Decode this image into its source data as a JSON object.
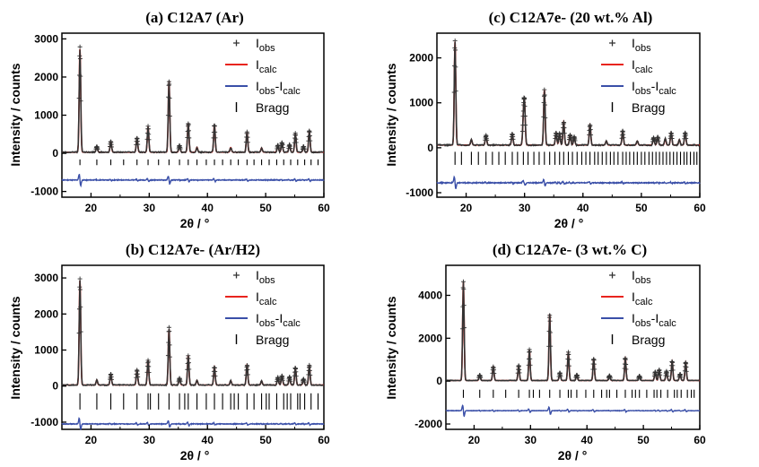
{
  "chart_data": [
    {
      "type": "line",
      "panel": "a",
      "title": "(a) C12A7 (Ar)",
      "xlabel": "2θ / °",
      "ylabel": "Intensity / counts",
      "xlim": [
        15,
        60
      ],
      "ylim": [
        -1150,
        3150
      ],
      "xticks": [
        20,
        30,
        40,
        50,
        60
      ],
      "yticks": [
        -1000,
        0,
        1000,
        2000,
        3000
      ],
      "baseline": 30,
      "diff_offset": -700,
      "bragg_row": [
        -160,
        -310
      ],
      "peaks": [
        [
          18.1,
          2700
        ],
        [
          21.0,
          150
        ],
        [
          23.4,
          280
        ],
        [
          27.9,
          380
        ],
        [
          29.8,
          660
        ],
        [
          33.4,
          1870
        ],
        [
          35.2,
          170
        ],
        [
          36.7,
          760
        ],
        [
          38.2,
          130
        ],
        [
          41.2,
          720
        ],
        [
          44.0,
          120
        ],
        [
          46.8,
          520
        ],
        [
          49.3,
          110
        ],
        [
          52.1,
          180
        ],
        [
          52.8,
          250
        ],
        [
          54.1,
          200
        ],
        [
          55.1,
          480
        ],
        [
          56.5,
          150
        ],
        [
          57.5,
          560
        ]
      ],
      "bragg_positions": [
        18.1,
        21.0,
        23.4,
        25.6,
        27.9,
        29.8,
        31.6,
        33.4,
        35.2,
        36.7,
        38.2,
        39.8,
        41.2,
        42.6,
        44.0,
        45.3,
        46.8,
        48.0,
        49.3,
        50.6,
        51.9,
        53.1,
        54.3,
        55.5,
        56.7,
        57.8,
        59.0
      ],
      "legend": [
        "Iobs",
        "Icalc",
        "Iobs-Icalc",
        "Bragg"
      ]
    },
    {
      "type": "line",
      "panel": "b",
      "title": "(b) C12A7e- (Ar/H2)",
      "xlabel": "2θ / °",
      "ylabel": "Intensity / counts",
      "xlim": [
        15,
        60
      ],
      "ylim": [
        -1200,
        3350
      ],
      "xticks": [
        20,
        30,
        40,
        50,
        60
      ],
      "yticks": [
        -1000,
        0,
        1000,
        2000,
        3000
      ],
      "baseline": 30,
      "diff_offset": -1050,
      "bragg_row": [
        -200,
        -650
      ],
      "peaks": [
        [
          18.1,
          2900
        ],
        [
          21.0,
          140
        ],
        [
          23.4,
          300
        ],
        [
          27.9,
          420
        ],
        [
          29.8,
          680
        ],
        [
          33.4,
          1550
        ],
        [
          35.2,
          180
        ],
        [
          36.7,
          820
        ],
        [
          38.2,
          130
        ],
        [
          41.2,
          500
        ],
        [
          44.0,
          120
        ],
        [
          46.8,
          560
        ],
        [
          49.3,
          110
        ],
        [
          52.1,
          200
        ],
        [
          52.8,
          260
        ],
        [
          54.1,
          220
        ],
        [
          55.1,
          480
        ],
        [
          56.5,
          160
        ],
        [
          57.5,
          540
        ]
      ],
      "bragg_positions": [
        18.1,
        21.0,
        23.4,
        25.6,
        27.9,
        29.8,
        31.6,
        33.4,
        35.2,
        36.7,
        38.2,
        39.8,
        41.2,
        42.6,
        44.0,
        45.3,
        46.8,
        48.0,
        49.3,
        50.6,
        51.9,
        53.1,
        54.3,
        55.5,
        56.7,
        57.8,
        59.0,
        30.2,
        36.1,
        44.6,
        50.1,
        53.7,
        55.9
      ],
      "legend": [
        "Iobs",
        "Icalc",
        "Iobs-Icalc",
        "Bragg"
      ]
    },
    {
      "type": "line",
      "panel": "c",
      "title": "(c) C12A7e- (20 wt.% Al)",
      "xlabel": "2θ / °",
      "ylabel": "Intensity / counts",
      "xlim": [
        15,
        60
      ],
      "ylim": [
        -1100,
        2550
      ],
      "xticks": [
        20,
        30,
        40,
        50,
        60
      ],
      "yticks": [
        -1000,
        0,
        1000,
        2000
      ],
      "baseline": 60,
      "diff_offset": -780,
      "bragg_row": [
        -90,
        -380
      ],
      "peaks": [
        [
          18.1,
          2300
        ],
        [
          20.9,
          120
        ],
        [
          23.4,
          210
        ],
        [
          27.9,
          250
        ],
        [
          29.8,
          520
        ],
        [
          30.0,
          850
        ],
        [
          33.4,
          1220
        ],
        [
          35.4,
          280
        ],
        [
          36.0,
          250
        ],
        [
          36.7,
          520
        ],
        [
          37.8,
          230
        ],
        [
          38.5,
          180
        ],
        [
          41.2,
          460
        ],
        [
          44.0,
          90
        ],
        [
          46.8,
          310
        ],
        [
          49.3,
          90
        ],
        [
          52.1,
          160
        ],
        [
          52.8,
          180
        ],
        [
          54.1,
          140
        ],
        [
          55.1,
          280
        ],
        [
          56.5,
          120
        ],
        [
          57.5,
          280
        ]
      ],
      "bragg_positions": [
        18.1,
        19.2,
        20.9,
        22.1,
        23.4,
        24.5,
        25.6,
        26.7,
        27.9,
        28.8,
        29.8,
        30.6,
        31.6,
        32.5,
        33.4,
        34.3,
        35.2,
        36.0,
        36.7,
        37.5,
        38.2,
        39.0,
        39.8,
        40.5,
        41.2,
        42.0,
        42.6,
        43.3,
        44.0,
        44.7,
        45.3,
        46.0,
        46.8,
        47.4,
        48.0,
        48.7,
        49.3,
        50.0,
        50.6,
        51.3,
        51.9,
        52.5,
        53.1,
        53.7,
        54.3,
        54.9,
        55.5,
        56.1,
        56.7,
        57.3,
        57.8,
        58.4,
        59.0,
        59.5
      ],
      "legend": [
        "Iobs",
        "Icalc",
        "Iobs-Icalc",
        "Bragg"
      ]
    },
    {
      "type": "line",
      "panel": "d",
      "title": "(d) C12A7e- (3 wt.% C)",
      "xlabel": "2θ / °",
      "ylabel": "Intensity / counts",
      "xlim": [
        15,
        60
      ],
      "ylim": [
        -2250,
        5400
      ],
      "xticks": [
        20,
        30,
        40,
        50,
        60
      ],
      "yticks": [
        -2000,
        0,
        2000,
        4000
      ],
      "baseline": 30,
      "diff_offset": -1380,
      "bragg_row": [
        -400,
        -780
      ],
      "peaks": [
        [
          18.1,
          4600
        ],
        [
          21.0,
          250
        ],
        [
          23.4,
          650
        ],
        [
          27.9,
          680
        ],
        [
          29.8,
          1400
        ],
        [
          33.4,
          3100
        ],
        [
          35.2,
          350
        ],
        [
          36.7,
          1300
        ],
        [
          38.2,
          260
        ],
        [
          41.2,
          1000
        ],
        [
          44.0,
          220
        ],
        [
          46.8,
          1050
        ],
        [
          49.3,
          200
        ],
        [
          52.1,
          400
        ],
        [
          52.8,
          500
        ],
        [
          54.1,
          420
        ],
        [
          55.1,
          900
        ],
        [
          56.5,
          300
        ],
        [
          57.5,
          850
        ]
      ],
      "bragg_positions": [
        18.1,
        21.0,
        23.4,
        25.6,
        27.9,
        29.8,
        31.6,
        33.4,
        35.2,
        36.7,
        38.2,
        39.8,
        41.2,
        42.6,
        44.0,
        45.3,
        46.8,
        48.0,
        49.3,
        50.6,
        51.9,
        53.1,
        54.3,
        55.5,
        56.7,
        57.8,
        59.0,
        30.5,
        37.2,
        43.5,
        48.6,
        52.4,
        56.0,
        58.5
      ],
      "legend": [
        "Iobs",
        "Icalc",
        "Iobs-Icalc",
        "Bragg"
      ]
    }
  ],
  "colors": {
    "obs": "#333333",
    "calc": "#e8241e",
    "diff": "#3a4fa8",
    "bragg": "#000000",
    "axes": "#000000"
  }
}
